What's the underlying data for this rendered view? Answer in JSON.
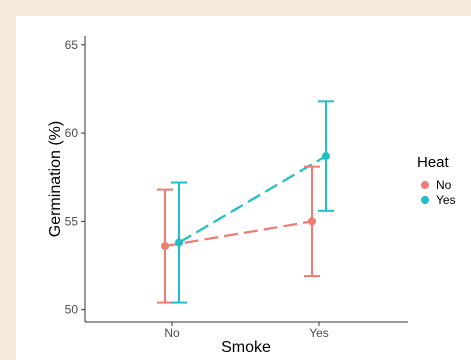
{
  "chart_data": {
    "type": "line",
    "categories": [
      "No",
      "Yes"
    ],
    "xlabel": "Smoke",
    "ylabel": "Germination (%)",
    "ylim": [
      49.3,
      65.5
    ],
    "yticks": [
      50,
      55,
      60,
      65
    ],
    "grid": false,
    "legend": {
      "title": "Heat",
      "position": "right"
    },
    "series": [
      {
        "name": "No",
        "color": "#f07b72",
        "values": [
          53.6,
          55.0
        ],
        "lower": [
          50.4,
          51.9
        ],
        "upper": [
          56.8,
          58.1
        ]
      },
      {
        "name": "Yes",
        "color": "#1fbfc4",
        "values": [
          53.8,
          58.7
        ],
        "lower": [
          50.4,
          55.6
        ],
        "upper": [
          57.2,
          61.8
        ]
      }
    ]
  }
}
